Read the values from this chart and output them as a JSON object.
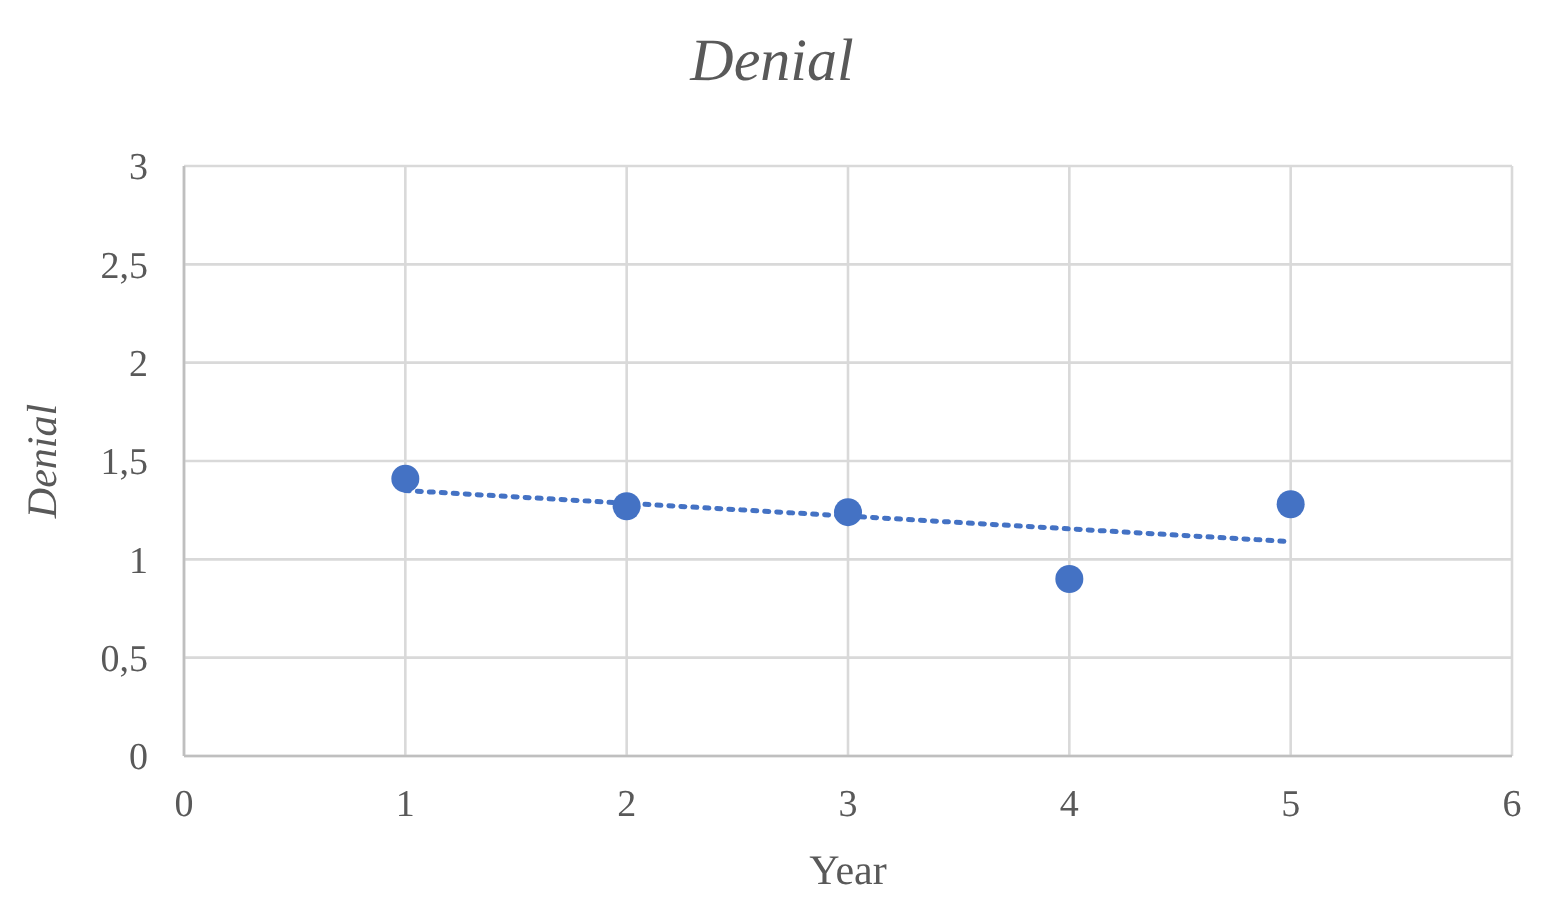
{
  "chart_data": {
    "type": "scatter",
    "title": "Denial",
    "xlabel": "Year",
    "ylabel": "Denial",
    "x": [
      1,
      2,
      3,
      4,
      5
    ],
    "series": [
      {
        "color": "#4472c4",
        "values": [
          1.41,
          1.27,
          1.24,
          0.9,
          1.28
        ],
        "marker": "circle"
      },
      {
        "type": "line",
        "color": "#4472c4",
        "x": [
          1,
          5
        ],
        "values": [
          1.35,
          1.09
        ],
        "line_style": "dotted",
        "marker": "none"
      }
    ],
    "xlim": [
      0,
      6
    ],
    "xticks": [
      0,
      1,
      2,
      3,
      4,
      5,
      6
    ],
    "ylim": [
      0,
      3
    ],
    "yticks": [
      0,
      {
        "value": 0.5,
        "label": "0,5"
      },
      1,
      {
        "value": 1.5,
        "label": "1,5"
      },
      2,
      {
        "value": 2.5,
        "label": "2,5"
      },
      3
    ],
    "grid": true
  }
}
